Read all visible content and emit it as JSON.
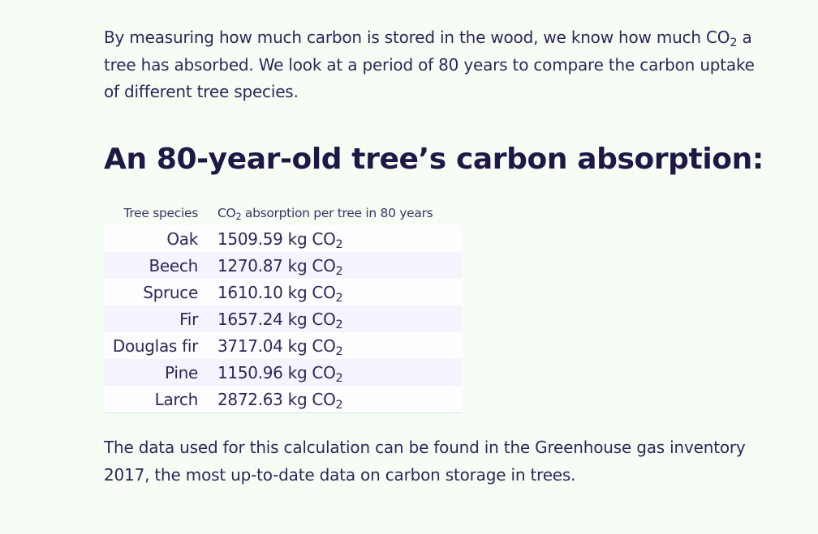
{
  "intro": {
    "part1": "By measuring how much carbon is stored in the wood, we know how much CO",
    "sub": "2",
    "part2": " a tree has absorbed. We look at a period of 80 years to compare the carbon uptake of different tree species."
  },
  "heading": "An 80-year-old tree’s carbon absorption:",
  "table": {
    "headers": {
      "species": "Tree species",
      "absorption_prefix": "CO",
      "absorption_sub": "2",
      "absorption_suffix": " absorption per tree in 80 years"
    },
    "unit_prefix": "kg CO",
    "unit_sub": "2",
    "rows": [
      {
        "species": "Oak",
        "value": "1509.59"
      },
      {
        "species": "Beech",
        "value": "1270.87"
      },
      {
        "species": "Spruce",
        "value": "1610.10"
      },
      {
        "species": "Fir",
        "value": "1657.24"
      },
      {
        "species": "Douglas fir",
        "value": "3717.04"
      },
      {
        "species": "Pine",
        "value": "1150.96"
      },
      {
        "species": "Larch",
        "value": "2872.63"
      }
    ]
  },
  "outro": "The data used for this calculation can be found in the Greenhouse gas inventory 2017, the most up-to-date data on carbon storage in trees.",
  "colors": {
    "background": "#f5fdf5",
    "text": "#2d2857",
    "heading": "#1f1846",
    "row_alt": "#f5f3fd"
  }
}
